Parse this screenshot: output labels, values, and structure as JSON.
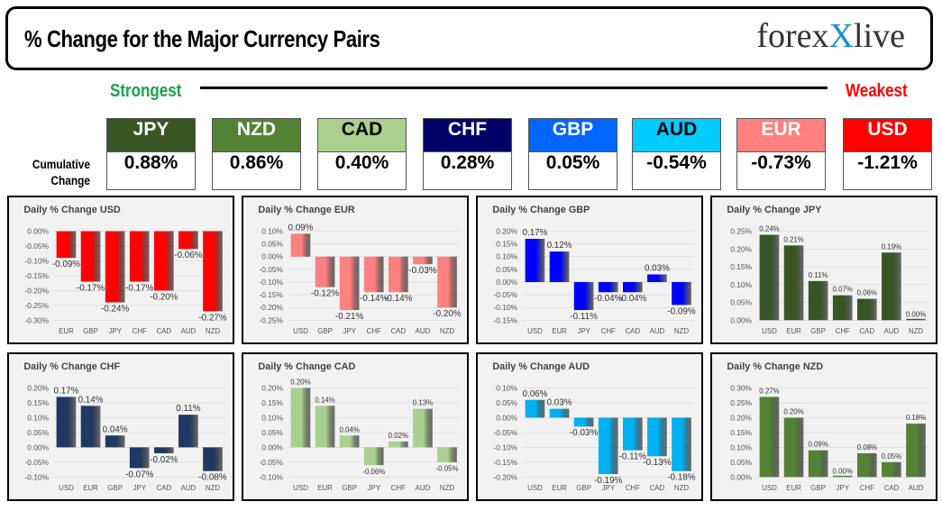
{
  "header": {
    "title": "% Change for the Major Currency Pairs",
    "logo": "forexlive"
  },
  "scale": {
    "strongest": "Strongest",
    "weakest": "Weakest",
    "row_label_1": "Cumulative",
    "row_label_2": "Change"
  },
  "ranking": [
    {
      "currency": "JPY",
      "value": "0.88%",
      "color": "#375623",
      "text": "#ffffff"
    },
    {
      "currency": "NZD",
      "value": "0.86%",
      "color": "#548235",
      "text": "#ffffff"
    },
    {
      "currency": "CAD",
      "value": "0.40%",
      "color": "#a9d08e",
      "text": "#000000"
    },
    {
      "currency": "CHF",
      "value": "0.28%",
      "color": "#000066",
      "text": "#ffffff"
    },
    {
      "currency": "GBP",
      "value": "0.05%",
      "color": "#0066ff",
      "text": "#ffffff"
    },
    {
      "currency": "AUD",
      "value": "-0.54%",
      "color": "#00ccff",
      "text": "#000000"
    },
    {
      "currency": "EUR",
      "value": "-0.73%",
      "color": "#ff8080",
      "text": "#ffffff"
    },
    {
      "currency": "USD",
      "value": "-1.21%",
      "color": "#ff0000",
      "text": "#ffffff"
    }
  ],
  "chart_data": [
    {
      "type": "bar",
      "title": "Daily % Change USD",
      "color": "#ff0000",
      "categories": [
        "EUR",
        "GBP",
        "JPY",
        "CHF",
        "CAD",
        "AUD",
        "NZD"
      ],
      "values": [
        -0.09,
        -0.17,
        -0.24,
        -0.17,
        -0.2,
        -0.06,
        -0.27
      ],
      "labels": [
        "-0.09%",
        "-0.17%",
        "-0.24%",
        "-0.17%",
        "-0.20%",
        "-0.06%",
        "-0.27%"
      ],
      "ylim": [
        -0.3,
        0.0
      ],
      "ticks": [
        "0.00%",
        "-0.05%",
        "-0.10%",
        "-0.15%",
        "-0.20%",
        "-0.25%",
        "-0.30%"
      ],
      "grid": true
    },
    {
      "type": "bar",
      "title": "Daily % Change EUR",
      "color": "#ff8080",
      "categories": [
        "USD",
        "GBP",
        "JPY",
        "CHF",
        "CAD",
        "AUD",
        "NZD"
      ],
      "values": [
        0.09,
        -0.12,
        -0.21,
        -0.14,
        -0.14,
        -0.03,
        -0.2
      ],
      "labels": [
        "0.09%",
        "-0.12%",
        "-0.21%",
        "-0.14%",
        "-0.14%",
        "-0.03%",
        "-0.20%"
      ],
      "ylim": [
        -0.25,
        0.1
      ],
      "ticks": [
        "0.10%",
        "0.05%",
        "0.00%",
        "-0.05%",
        "-0.10%",
        "-0.15%",
        "-0.20%",
        "-0.25%"
      ],
      "grid": true
    },
    {
      "type": "bar",
      "title": "Daily % Change GBP",
      "color": "#0000ff",
      "categories": [
        "USD",
        "EUR",
        "JPY",
        "CHF",
        "CAD",
        "AUD",
        "NZD"
      ],
      "values": [
        0.17,
        0.12,
        -0.11,
        -0.04,
        -0.04,
        0.03,
        -0.09
      ],
      "labels": [
        "0.17%",
        "0.12%",
        "-0.11%",
        "-0.04%",
        "-0.04%",
        "0.03%",
        "-0.09%"
      ],
      "ylim": [
        -0.15,
        0.2
      ],
      "ticks": [
        "0.20%",
        "0.15%",
        "0.10%",
        "0.05%",
        "0.00%",
        "-0.05%",
        "-0.10%",
        "-0.15%"
      ],
      "grid": true
    },
    {
      "type": "bar",
      "title": "Daily % Change JPY",
      "color": "#375623",
      "categories": [
        "USD",
        "EUR",
        "GBP",
        "CHF",
        "CAD",
        "AUD",
        "NZD"
      ],
      "values": [
        0.24,
        0.21,
        0.11,
        0.07,
        0.06,
        0.19,
        0.0
      ],
      "labels": [
        "0.24%",
        "0.21%",
        "0.11%",
        "0.07%",
        "0.06%",
        "0.19%",
        "0.00%"
      ],
      "ylim": [
        0.0,
        0.25
      ],
      "ticks": [
        "0.25%",
        "0.20%",
        "0.15%",
        "0.10%",
        "0.05%",
        "0.00%"
      ],
      "grid": true
    },
    {
      "type": "bar",
      "title": "Daily % Change CHF",
      "color": "#1f3864",
      "categories": [
        "USD",
        "EUR",
        "GBP",
        "JPY",
        "CAD",
        "AUD",
        "NZD"
      ],
      "values": [
        0.17,
        0.14,
        0.04,
        -0.07,
        -0.02,
        0.11,
        -0.08
      ],
      "labels": [
        "0.17%",
        "0.14%",
        "0.04%",
        "-0.07%",
        "-0.02%",
        "0.11%",
        "-0.08%"
      ],
      "ylim": [
        -0.1,
        0.2
      ],
      "ticks": [
        "0.20%",
        "0.15%",
        "0.10%",
        "0.05%",
        "0.00%",
        "-0.05%",
        "-0.10%"
      ],
      "grid": true
    },
    {
      "type": "bar",
      "title": "Daily % Change CAD",
      "color": "#a9d08e",
      "categories": [
        "USD",
        "EUR",
        "GBP",
        "JPY",
        "CHF",
        "AUD",
        "NZD"
      ],
      "values": [
        0.2,
        0.14,
        0.04,
        -0.06,
        0.02,
        0.13,
        -0.05
      ],
      "labels": [
        "0.20%",
        "0.14%",
        "0.04%",
        "-0.06%",
        "0.02%",
        "0.13%",
        "-0.05%"
      ],
      "ylim": [
        -0.1,
        0.2
      ],
      "ticks": [
        "0.20%",
        "0.15%",
        "0.10%",
        "0.05%",
        "0.00%",
        "-0.05%",
        "-0.10%"
      ],
      "grid": true
    },
    {
      "type": "bar",
      "title": "Daily % Change AUD",
      "color": "#00b0f0",
      "categories": [
        "USD",
        "EUR",
        "GBP",
        "JPY",
        "CHF",
        "CAD",
        "NZD"
      ],
      "values": [
        0.06,
        0.03,
        -0.03,
        -0.19,
        -0.11,
        -0.13,
        -0.18
      ],
      "labels": [
        "0.06%",
        "0.03%",
        "-0.03%",
        "-0.19%",
        "-0.11%",
        "-0.13%",
        "-0.18%"
      ],
      "ylim": [
        -0.2,
        0.1
      ],
      "ticks": [
        "0.10%",
        "0.05%",
        "0.00%",
        "-0.05%",
        "-0.10%",
        "-0.15%",
        "-0.20%"
      ],
      "grid": true
    },
    {
      "type": "bar",
      "title": "Daily % Change NZD",
      "color": "#548235",
      "categories": [
        "USD",
        "EUR",
        "GBP",
        "JPY",
        "CHF",
        "CAD",
        "AUD"
      ],
      "values": [
        0.27,
        0.2,
        0.09,
        0.0,
        0.08,
        0.05,
        0.18
      ],
      "labels": [
        "0.27%",
        "0.20%",
        "0.09%",
        "0.00%",
        "0.08%",
        "0.05%",
        "0.18%"
      ],
      "ylim": [
        0.0,
        0.3
      ],
      "ticks": [
        "0.30%",
        "0.25%",
        "0.20%",
        "0.15%",
        "0.10%",
        "0.05%",
        "0.00%"
      ],
      "grid": true
    }
  ]
}
